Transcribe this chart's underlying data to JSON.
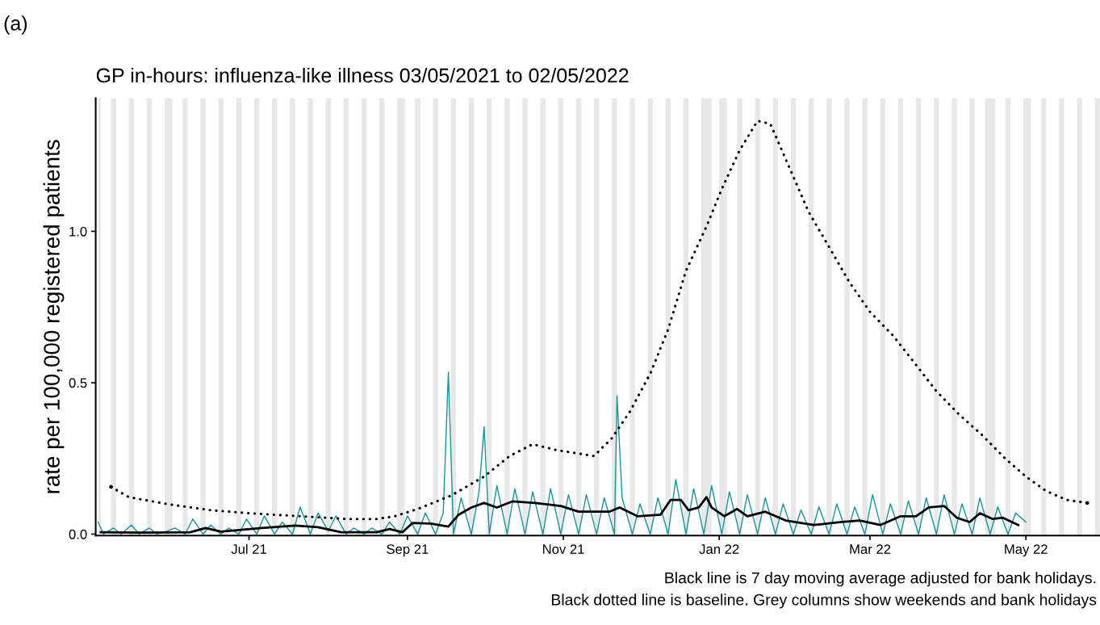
{
  "chart_data": {
    "type": "line",
    "title": "GP in-hours: influenza-like illness 03/05/2021 to 02/05/2022",
    "ylabel": "rate per 100,000 registered patients",
    "annotations": [
      "(a)",
      "Black line is 7 day moving average adjusted for bank holidays.",
      "Black dotted line is baseline. Grey columns show weekends and bank holidays"
    ],
    "xlim": [
      "2021-05-02",
      "2022-05-30"
    ],
    "xticks": [
      {
        "value": "2021-07-01",
        "label": "Jul 21"
      },
      {
        "value": "2021-09-01",
        "label": "Sep 21"
      },
      {
        "value": "2021-11-01",
        "label": "Nov 21"
      },
      {
        "value": "2022-01-01",
        "label": "Jan 22"
      },
      {
        "value": "2022-03-01",
        "label": "Mar 22"
      },
      {
        "value": "2022-05-01",
        "label": "May 22"
      }
    ],
    "ylim": [
      -0.005,
      1.44
    ],
    "yticks": [
      {
        "value": 0,
        "label": "0.0"
      },
      {
        "value": 0.5,
        "label": "0.5"
      },
      {
        "value": 1.0,
        "label": "1.0"
      }
    ],
    "grid": false,
    "legend": false,
    "series": [
      {
        "line_style": "solid",
        "color": "#17959a",
        "x": [
          "2021-05-03",
          "2021-05-05",
          "2021-05-09",
          "2021-05-12",
          "2021-05-16",
          "2021-05-19",
          "2021-05-23",
          "2021-05-26",
          "2021-05-30",
          "2021-06-02",
          "2021-06-06",
          "2021-06-09",
          "2021-06-13",
          "2021-06-16",
          "2021-06-20",
          "2021-06-23",
          "2021-06-27",
          "2021-06-30",
          "2021-07-04",
          "2021-07-07",
          "2021-07-11",
          "2021-07-14",
          "2021-07-18",
          "2021-07-21",
          "2021-07-25",
          "2021-07-28",
          "2021-08-01",
          "2021-08-04",
          "2021-08-08",
          "2021-08-11",
          "2021-08-15",
          "2021-08-18",
          "2021-08-22",
          "2021-08-25",
          "2021-08-29",
          "2021-09-01",
          "2021-09-05",
          "2021-09-08",
          "2021-09-12",
          "2021-09-15",
          "2021-09-17",
          "2021-09-19",
          "2021-09-22",
          "2021-09-26",
          "2021-09-29",
          "2021-10-01",
          "2021-10-03",
          "2021-10-06",
          "2021-10-10",
          "2021-10-13",
          "2021-10-17",
          "2021-10-20",
          "2021-10-24",
          "2021-10-27",
          "2021-10-31",
          "2021-11-03",
          "2021-11-07",
          "2021-11-10",
          "2021-11-14",
          "2021-11-17",
          "2021-11-21",
          "2021-11-22",
          "2021-11-24",
          "2021-11-28",
          "2021-12-01",
          "2021-12-05",
          "2021-12-08",
          "2021-12-12",
          "2021-12-15",
          "2021-12-19",
          "2021-12-22",
          "2021-12-26",
          "2021-12-29",
          "2022-01-02",
          "2022-01-05",
          "2022-01-09",
          "2022-01-12",
          "2022-01-16",
          "2022-01-19",
          "2022-01-23",
          "2022-01-26",
          "2022-01-30",
          "2022-02-02",
          "2022-02-06",
          "2022-02-09",
          "2022-02-13",
          "2022-02-16",
          "2022-02-20",
          "2022-02-23",
          "2022-02-27",
          "2022-03-02",
          "2022-03-06",
          "2022-03-09",
          "2022-03-13",
          "2022-03-16",
          "2022-03-20",
          "2022-03-23",
          "2022-03-27",
          "2022-03-30",
          "2022-04-03",
          "2022-04-06",
          "2022-04-10",
          "2022-04-13",
          "2022-04-17",
          "2022-04-20",
          "2022-04-24",
          "2022-04-27",
          "2022-05-01"
        ],
        "values": [
          0.04,
          0.0,
          0.02,
          0.0,
          0.03,
          0.0,
          0.02,
          0.0,
          0.01,
          0.02,
          0.0,
          0.05,
          0.0,
          0.03,
          0.0,
          0.02,
          0.0,
          0.05,
          0.0,
          0.06,
          0.0,
          0.04,
          0.0,
          0.09,
          0.0,
          0.07,
          0.01,
          0.06,
          0.0,
          0.02,
          0.0,
          0.02,
          0.0,
          0.04,
          0.0,
          0.06,
          0.0,
          0.07,
          0.0,
          0.07,
          0.535,
          0.0,
          0.12,
          0.0,
          0.14,
          0.355,
          0.0,
          0.16,
          0.0,
          0.15,
          0.0,
          0.14,
          0.0,
          0.15,
          0.0,
          0.13,
          0.0,
          0.13,
          0.0,
          0.12,
          0.0,
          0.457,
          0.12,
          0.0,
          0.1,
          0.0,
          0.12,
          0.0,
          0.18,
          0.0,
          0.15,
          0.0,
          0.16,
          0.0,
          0.14,
          0.0,
          0.13,
          0.0,
          0.12,
          0.0,
          0.1,
          0.0,
          0.08,
          0.0,
          0.09,
          0.0,
          0.1,
          0.0,
          0.09,
          0.0,
          0.13,
          0.0,
          0.1,
          0.0,
          0.11,
          0.0,
          0.12,
          0.0,
          0.13,
          0.0,
          0.1,
          0.0,
          0.12,
          0.0,
          0.09,
          0.0,
          0.07,
          0.04
        ]
      },
      {
        "line_style": "solid",
        "color": "#000000",
        "x": [
          "2021-05-04",
          "2021-05-20",
          "2021-06-08",
          "2021-06-14",
          "2021-06-20",
          "2021-07-06",
          "2021-07-19",
          "2021-07-28",
          "2021-08-06",
          "2021-08-20",
          "2021-08-25",
          "2021-08-30",
          "2021-09-03",
          "2021-09-10",
          "2021-09-17",
          "2021-09-21",
          "2021-09-26",
          "2021-10-01",
          "2021-10-06",
          "2021-10-12",
          "2021-10-21",
          "2021-10-31",
          "2021-11-07",
          "2021-11-19",
          "2021-11-23",
          "2021-11-30",
          "2021-12-09",
          "2021-12-13",
          "2021-12-17",
          "2021-12-20",
          "2021-12-24",
          "2021-12-27",
          "2021-12-29",
          "2022-01-03",
          "2022-01-08",
          "2022-01-12",
          "2022-01-19",
          "2022-01-27",
          "2022-02-07",
          "2022-02-18",
          "2022-02-25",
          "2022-03-05",
          "2022-03-13",
          "2022-03-19",
          "2022-03-24",
          "2022-03-30",
          "2022-04-04",
          "2022-04-09",
          "2022-04-13",
          "2022-04-18",
          "2022-04-22",
          "2022-04-28"
        ],
        "values": [
          0.006,
          0.005,
          0.006,
          0.02,
          0.008,
          0.02,
          0.028,
          0.023,
          0.006,
          0.006,
          0.017,
          0.006,
          0.037,
          0.035,
          0.025,
          0.064,
          0.088,
          0.103,
          0.088,
          0.108,
          0.103,
          0.093,
          0.074,
          0.074,
          0.088,
          0.059,
          0.064,
          0.113,
          0.113,
          0.079,
          0.088,
          0.122,
          0.088,
          0.059,
          0.083,
          0.059,
          0.074,
          0.045,
          0.03,
          0.04,
          0.045,
          0.03,
          0.059,
          0.059,
          0.088,
          0.093,
          0.054,
          0.04,
          0.069,
          0.05,
          0.054,
          0.03
        ]
      },
      {
        "line_style": "dotted",
        "color": "#000000",
        "x": [
          "2021-05-08",
          "2021-05-15",
          "2021-05-31",
          "2021-06-16",
          "2021-07-01",
          "2021-07-21",
          "2021-08-08",
          "2021-08-20",
          "2021-08-27",
          "2021-09-05",
          "2021-09-18",
          "2021-10-01",
          "2021-10-11",
          "2021-10-20",
          "2021-10-29",
          "2021-11-13",
          "2021-11-20",
          "2021-11-27",
          "2021-12-05",
          "2021-12-12",
          "2021-12-19",
          "2021-12-27",
          "2022-01-02",
          "2022-01-09",
          "2022-01-16",
          "2022-01-21",
          "2022-01-29",
          "2022-02-05",
          "2022-02-13",
          "2022-02-21",
          "2022-03-01",
          "2022-03-10",
          "2022-03-19",
          "2022-03-27",
          "2022-04-05",
          "2022-04-14",
          "2022-04-23",
          "2022-05-01",
          "2022-05-09",
          "2022-05-17",
          "2022-05-25"
        ],
        "values": [
          0.156,
          0.122,
          0.098,
          0.079,
          0.069,
          0.059,
          0.05,
          0.05,
          0.059,
          0.083,
          0.127,
          0.19,
          0.258,
          0.297,
          0.278,
          0.258,
          0.317,
          0.404,
          0.53,
          0.676,
          0.87,
          1.016,
          1.14,
          1.268,
          1.365,
          1.355,
          1.2,
          1.064,
          0.948,
          0.831,
          0.734,
          0.656,
          0.559,
          0.472,
          0.394,
          0.326,
          0.249,
          0.19,
          0.142,
          0.113,
          0.103
        ]
      }
    ],
    "bands": [
      {
        "axis": "x",
        "from": "2021-05-03",
        "to": "2021-05-04",
        "color": "#e8e8e8"
      },
      {
        "axis": "x",
        "from": "2021-05-08",
        "to": "2021-05-10",
        "color": "#e8e8e8"
      },
      {
        "axis": "x",
        "from": "2021-05-15",
        "to": "2021-05-17",
        "color": "#e8e8e8"
      },
      {
        "axis": "x",
        "from": "2021-05-22",
        "to": "2021-05-24",
        "color": "#e8e8e8"
      },
      {
        "axis": "x",
        "from": "2021-05-29",
        "to": "2021-06-01",
        "color": "#e8e8e8"
      },
      {
        "axis": "x",
        "from": "2021-06-05",
        "to": "2021-06-07",
        "color": "#e8e8e8"
      },
      {
        "axis": "x",
        "from": "2021-06-12",
        "to": "2021-06-14",
        "color": "#e8e8e8"
      },
      {
        "axis": "x",
        "from": "2021-06-19",
        "to": "2021-06-21",
        "color": "#e8e8e8"
      },
      {
        "axis": "x",
        "from": "2021-06-26",
        "to": "2021-06-28",
        "color": "#e8e8e8"
      },
      {
        "axis": "x",
        "from": "2021-07-03",
        "to": "2021-07-05",
        "color": "#e8e8e8"
      },
      {
        "axis": "x",
        "from": "2021-07-10",
        "to": "2021-07-12",
        "color": "#e8e8e8"
      },
      {
        "axis": "x",
        "from": "2021-07-17",
        "to": "2021-07-19",
        "color": "#e8e8e8"
      },
      {
        "axis": "x",
        "from": "2021-07-24",
        "to": "2021-07-26",
        "color": "#e8e8e8"
      },
      {
        "axis": "x",
        "from": "2021-07-31",
        "to": "2021-08-02",
        "color": "#e8e8e8"
      },
      {
        "axis": "x",
        "from": "2021-08-07",
        "to": "2021-08-09",
        "color": "#e8e8e8"
      },
      {
        "axis": "x",
        "from": "2021-08-14",
        "to": "2021-08-16",
        "color": "#e8e8e8"
      },
      {
        "axis": "x",
        "from": "2021-08-21",
        "to": "2021-08-23",
        "color": "#e8e8e8"
      },
      {
        "axis": "x",
        "from": "2021-08-28",
        "to": "2021-08-31",
        "color": "#e8e8e8"
      },
      {
        "axis": "x",
        "from": "2021-09-04",
        "to": "2021-09-06",
        "color": "#e8e8e8"
      },
      {
        "axis": "x",
        "from": "2021-09-11",
        "to": "2021-09-13",
        "color": "#e8e8e8"
      },
      {
        "axis": "x",
        "from": "2021-09-18",
        "to": "2021-09-20",
        "color": "#e8e8e8"
      },
      {
        "axis": "x",
        "from": "2021-09-25",
        "to": "2021-09-27",
        "color": "#e8e8e8"
      },
      {
        "axis": "x",
        "from": "2021-10-02",
        "to": "2021-10-04",
        "color": "#e8e8e8"
      },
      {
        "axis": "x",
        "from": "2021-10-09",
        "to": "2021-10-11",
        "color": "#e8e8e8"
      },
      {
        "axis": "x",
        "from": "2021-10-16",
        "to": "2021-10-18",
        "color": "#e8e8e8"
      },
      {
        "axis": "x",
        "from": "2021-10-23",
        "to": "2021-10-25",
        "color": "#e8e8e8"
      },
      {
        "axis": "x",
        "from": "2021-10-30",
        "to": "2021-11-01",
        "color": "#e8e8e8"
      },
      {
        "axis": "x",
        "from": "2021-11-06",
        "to": "2021-11-08",
        "color": "#e8e8e8"
      },
      {
        "axis": "x",
        "from": "2021-11-13",
        "to": "2021-11-15",
        "color": "#e8e8e8"
      },
      {
        "axis": "x",
        "from": "2021-11-20",
        "to": "2021-11-22",
        "color": "#e8e8e8"
      },
      {
        "axis": "x",
        "from": "2021-11-27",
        "to": "2021-11-29",
        "color": "#e8e8e8"
      },
      {
        "axis": "x",
        "from": "2021-12-04",
        "to": "2021-12-06",
        "color": "#e8e8e8"
      },
      {
        "axis": "x",
        "from": "2021-12-11",
        "to": "2021-12-13",
        "color": "#e8e8e8"
      },
      {
        "axis": "x",
        "from": "2021-12-18",
        "to": "2021-12-20",
        "color": "#e8e8e8"
      },
      {
        "axis": "x",
        "from": "2021-12-25",
        "to": "2021-12-29",
        "color": "#e8e8e8"
      },
      {
        "axis": "x",
        "from": "2022-01-01",
        "to": "2022-01-04",
        "color": "#e8e8e8"
      },
      {
        "axis": "x",
        "from": "2022-01-08",
        "to": "2022-01-10",
        "color": "#e8e8e8"
      },
      {
        "axis": "x",
        "from": "2022-01-15",
        "to": "2022-01-17",
        "color": "#e8e8e8"
      },
      {
        "axis": "x",
        "from": "2022-01-22",
        "to": "2022-01-24",
        "color": "#e8e8e8"
      },
      {
        "axis": "x",
        "from": "2022-01-29",
        "to": "2022-01-31",
        "color": "#e8e8e8"
      },
      {
        "axis": "x",
        "from": "2022-02-05",
        "to": "2022-02-07",
        "color": "#e8e8e8"
      },
      {
        "axis": "x",
        "from": "2022-02-12",
        "to": "2022-02-14",
        "color": "#e8e8e8"
      },
      {
        "axis": "x",
        "from": "2022-02-19",
        "to": "2022-02-21",
        "color": "#e8e8e8"
      },
      {
        "axis": "x",
        "from": "2022-02-26",
        "to": "2022-02-28",
        "color": "#e8e8e8"
      },
      {
        "axis": "x",
        "from": "2022-03-05",
        "to": "2022-03-07",
        "color": "#e8e8e8"
      },
      {
        "axis": "x",
        "from": "2022-03-12",
        "to": "2022-03-14",
        "color": "#e8e8e8"
      },
      {
        "axis": "x",
        "from": "2022-03-19",
        "to": "2022-03-21",
        "color": "#e8e8e8"
      },
      {
        "axis": "x",
        "from": "2022-03-26",
        "to": "2022-03-28",
        "color": "#e8e8e8"
      },
      {
        "axis": "x",
        "from": "2022-04-02",
        "to": "2022-04-04",
        "color": "#e8e8e8"
      },
      {
        "axis": "x",
        "from": "2022-04-09",
        "to": "2022-04-11",
        "color": "#e8e8e8"
      },
      {
        "axis": "x",
        "from": "2022-04-15",
        "to": "2022-04-19",
        "color": "#e8e8e8"
      },
      {
        "axis": "x",
        "from": "2022-04-23",
        "to": "2022-04-25",
        "color": "#e8e8e8"
      },
      {
        "axis": "x",
        "from": "2022-04-30",
        "to": "2022-05-03",
        "color": "#e8e8e8"
      },
      {
        "axis": "x",
        "from": "2022-05-07",
        "to": "2022-05-09",
        "color": "#e8e8e8"
      },
      {
        "axis": "x",
        "from": "2022-05-14",
        "to": "2022-05-16",
        "color": "#e8e8e8"
      },
      {
        "axis": "x",
        "from": "2022-05-21",
        "to": "2022-05-23",
        "color": "#e8e8e8"
      },
      {
        "axis": "x",
        "from": "2022-05-28",
        "to": "2022-05-30",
        "color": "#e8e8e8"
      }
    ]
  }
}
